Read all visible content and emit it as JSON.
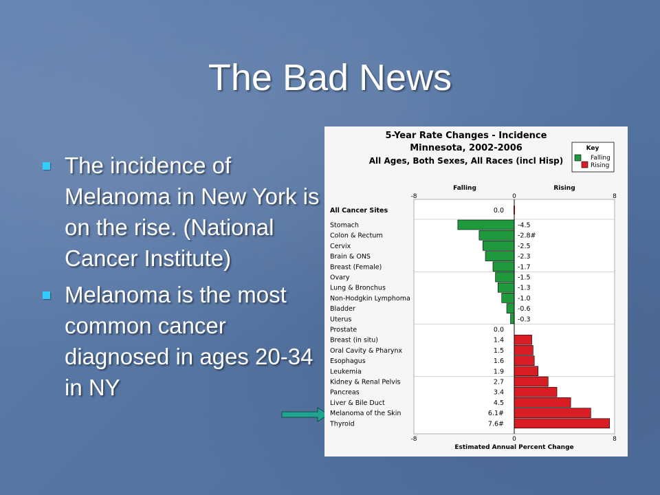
{
  "slide": {
    "title": "The Bad News",
    "bullets": [
      "The incidence of Melanoma in New York is on the rise. (National Cancer Institute)",
      "Melanoma is the most common cancer diagnosed in ages 20-34 in NY"
    ]
  },
  "colors": {
    "falling": "#1e9a3c",
    "rising": "#d81e24",
    "arrow": "#1fa58f",
    "accent_bullet": "#33ccff"
  },
  "chart_data": {
    "type": "bar",
    "orientation": "horizontal",
    "title_lines": [
      "5-Year Rate Changes - Incidence",
      "Minnesota, 2002-2006",
      "All Ages, Both Sexes, All Races (incl Hisp)"
    ],
    "key": {
      "title": "Key",
      "falling_label": "Falling",
      "rising_label": "Rising"
    },
    "direction_labels": {
      "left": "Falling",
      "right": "Rising"
    },
    "xlabel": "Estimated Annual Percent Change",
    "xlim": [
      -8,
      8
    ],
    "x_ticks": [
      "-8",
      "0",
      "8"
    ],
    "grid": true,
    "summary": {
      "category": "All Cancer Sites",
      "value": 0.0,
      "label": "0.0"
    },
    "categories": [
      "Stomach",
      "Colon & Rectum",
      "Cervix",
      "Brain & ONS",
      "Breast (Female)",
      "Ovary",
      "Lung & Bronchus",
      "Non-Hodgkin Lymphoma",
      "Bladder",
      "Uterus",
      "Prostate",
      "Breast (in situ)",
      "Oral Cavity & Pharynx",
      "Esophagus",
      "Leukemia",
      "Kidney & Renal Pelvis",
      "Pancreas",
      "Liver & Bile Duct",
      "Melanoma of the Skin",
      "Thyroid"
    ],
    "values": [
      -4.5,
      -2.8,
      -2.5,
      -2.3,
      -1.7,
      -1.5,
      -1.3,
      -1.0,
      -0.6,
      -0.3,
      0.0,
      1.4,
      1.5,
      1.6,
      1.9,
      2.7,
      3.4,
      4.5,
      6.1,
      7.6
    ],
    "value_labels": [
      "-4.5",
      "-2.8#",
      "-2.5",
      "-2.3",
      "-1.7",
      "-1.5",
      "-1.3",
      "-1.0",
      "-0.6",
      "-0.3",
      "0.0",
      "1.4",
      "1.5",
      "1.6",
      "1.9",
      "2.7",
      "3.4",
      "4.5",
      "6.1#",
      "7.6#"
    ],
    "highlighted_category": "Melanoma of the Skin"
  }
}
